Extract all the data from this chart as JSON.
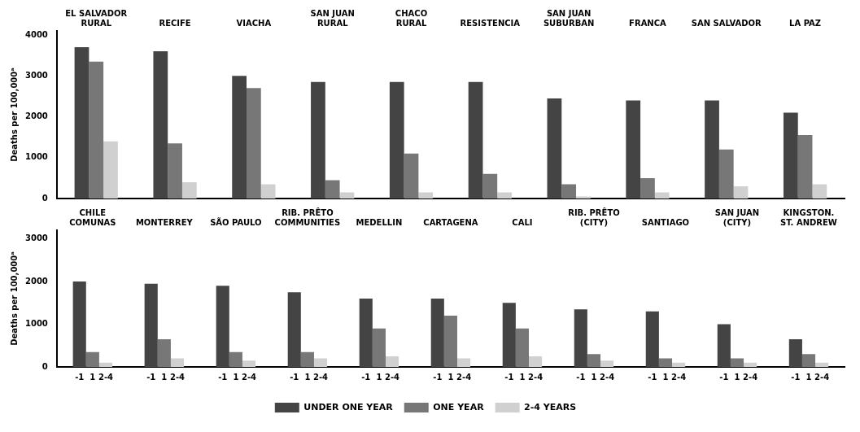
{
  "chart_data": [
    {
      "type": "bar",
      "ylabel": "Deaths per 100,000ᵃ",
      "categories": [
        "EL SALVADOR\nRURAL",
        "RECIFE",
        "VIACHA",
        "SAN JUAN\nRURAL",
        "CHACO\nRURAL",
        "RESISTENCIA",
        "SAN JUAN\nSUBURBAN",
        "FRANCA",
        "SAN SALVADOR",
        "LA PAZ"
      ],
      "series": [
        {
          "color": "#444444",
          "values": [
            3700,
            3600,
            3000,
            2850,
            2850,
            2850,
            2450,
            2400,
            2400,
            2100
          ]
        },
        {
          "color": "#777777",
          "values": [
            3350,
            1350,
            2700,
            450,
            1100,
            600,
            350,
            500,
            1200,
            1550
          ]
        },
        {
          "color": "#d0d0d0",
          "values": [
            1400,
            400,
            350,
            150,
            150,
            150,
            50,
            150,
            300,
            350
          ]
        }
      ],
      "ylim": [
        0,
        4100
      ],
      "yticks": [
        0,
        1000,
        2000,
        3000,
        4000
      ],
      "grid": false,
      "legend": false
    },
    {
      "type": "bar",
      "ylabel": "Deaths per 100,000ᵃ",
      "categories": [
        "CHILE\nCOMUNAS",
        "MONTERREY",
        "SÃO PAULO",
        "RIB. PRÊTO\nCOMMUNITIES",
        "MEDELLIN",
        "CARTAGENA",
        "CALI",
        "RIB. PRÊTO\n(CITY)",
        "SANTIAGO",
        "SAN JUAN\n(CITY)",
        "KINGSTON.\nST. ANDREW"
      ],
      "series": [
        {
          "name": "UNDER ONE YEAR",
          "color": "#444444",
          "values": [
            2000,
            1950,
            1900,
            1750,
            1600,
            1600,
            1500,
            1350,
            1300,
            1000,
            650
          ]
        },
        {
          "name": "ONE YEAR",
          "color": "#777777",
          "values": [
            350,
            650,
            350,
            350,
            900,
            1200,
            900,
            300,
            200,
            200,
            300
          ]
        },
        {
          "name": "2-4 YEARS",
          "color": "#d0d0d0",
          "values": [
            100,
            200,
            150,
            200,
            250,
            200,
            250,
            150,
            100,
            100,
            100
          ]
        }
      ],
      "annotations": [
        "-1",
        "1",
        "2-4"
      ],
      "ylim": [
        0,
        3200
      ],
      "yticks": [
        0,
        1000,
        2000,
        3000
      ],
      "grid": false,
      "legend": "bottom"
    }
  ]
}
